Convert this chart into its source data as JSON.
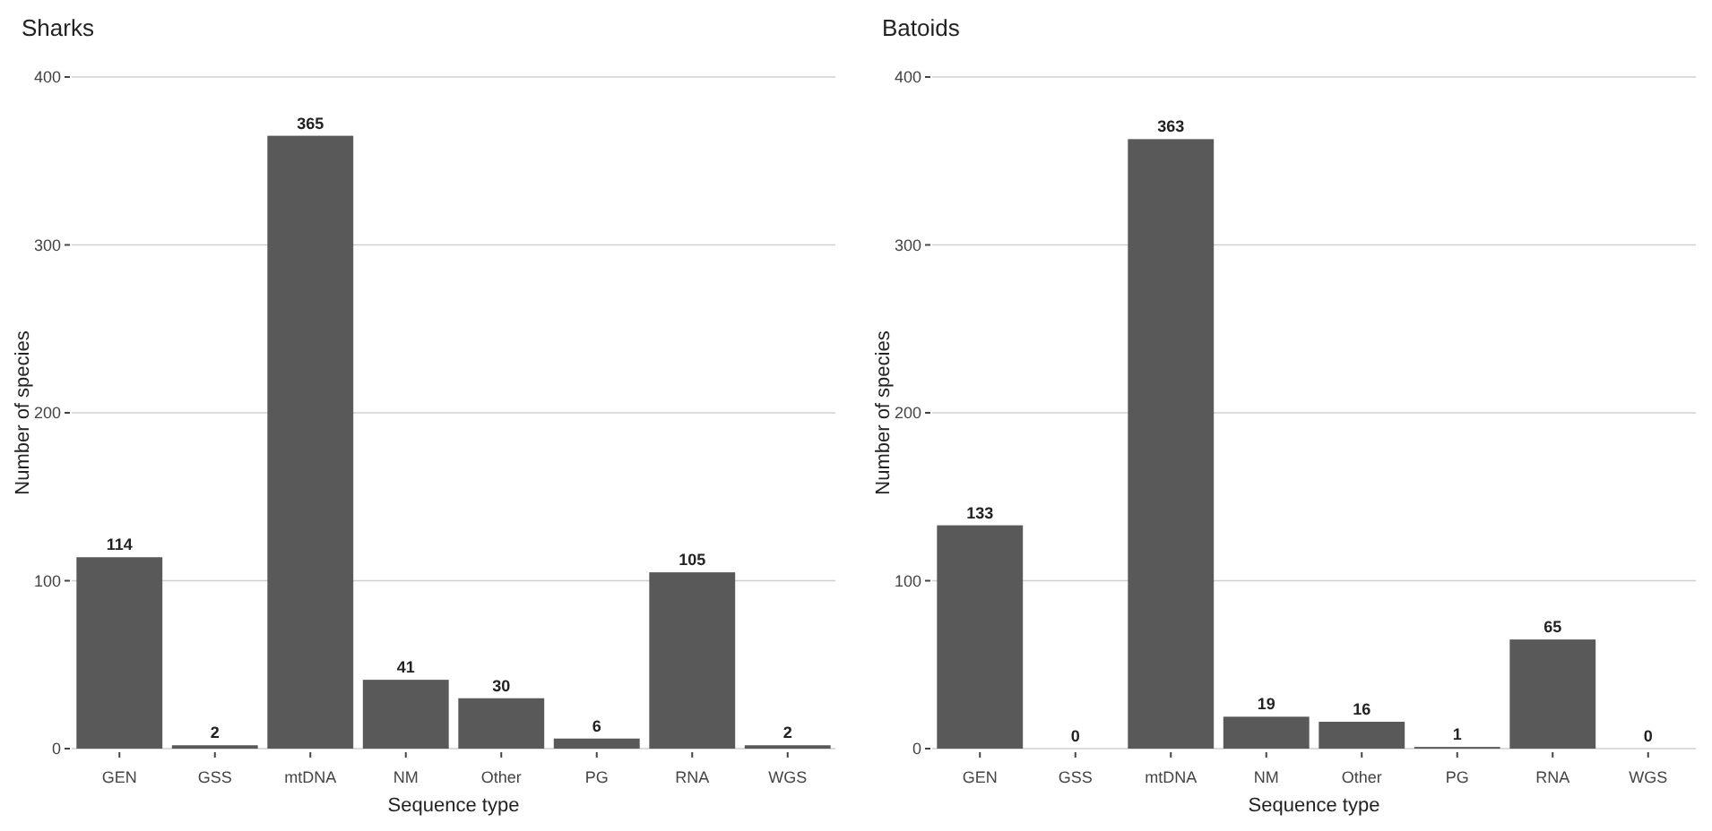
{
  "chart_data": [
    {
      "type": "bar",
      "title": "Sharks",
      "xlabel": "Sequence type",
      "ylabel": "Number of species",
      "categories": [
        "GEN",
        "GSS",
        "mtDNA",
        "NM",
        "Other",
        "PG",
        "RNA",
        "WGS"
      ],
      "values": [
        114,
        2,
        365,
        41,
        30,
        6,
        105,
        2
      ],
      "color": "#595959",
      "ylim": [
        0,
        400
      ],
      "yticks": [
        0,
        100,
        200,
        300,
        400
      ],
      "grid": "y",
      "data_labels": true
    },
    {
      "type": "bar",
      "title": "Batoids",
      "xlabel": "Sequence type",
      "ylabel": "Number of species",
      "categories": [
        "GEN",
        "GSS",
        "mtDNA",
        "NM",
        "Other",
        "PG",
        "RNA",
        "WGS"
      ],
      "values": [
        133,
        0,
        363,
        19,
        16,
        1,
        65,
        0
      ],
      "color": "#595959",
      "ylim": [
        0,
        400
      ],
      "yticks": [
        0,
        100,
        200,
        300,
        400
      ],
      "grid": "y",
      "data_labels": true
    }
  ]
}
